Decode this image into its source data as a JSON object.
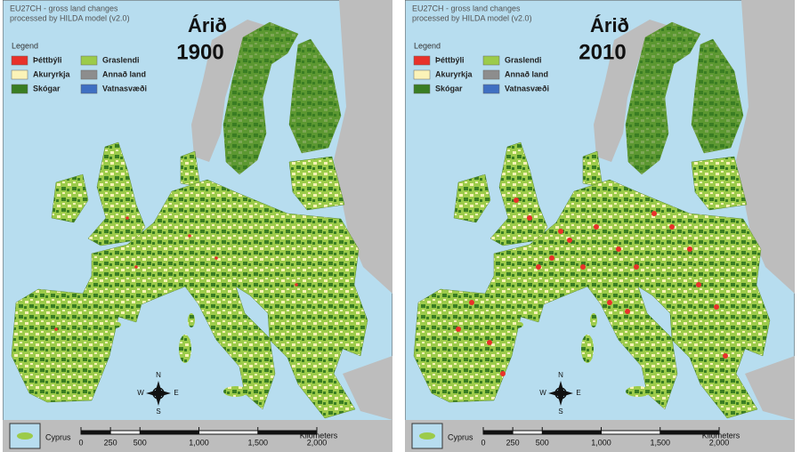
{
  "panels": [
    {
      "header_lines": [
        "EU27CH - gross land changes",
        "processed by HILDA model (v2.0)"
      ],
      "legend": {
        "title": "Legend",
        "items": [
          {
            "label": "Þéttbýli",
            "color": "#e8312a"
          },
          {
            "label": "Akuryrkja",
            "color": "#fbf3b8"
          },
          {
            "label": "Skógar",
            "color": "#3a7d23"
          },
          {
            "label": "Graslendi",
            "color": "#9ccb4a"
          },
          {
            "label": "Annað land",
            "color": "#8d8d8d"
          },
          {
            "label": "Vatnasvæði",
            "color": "#3f6fc2"
          }
        ]
      },
      "title": "Árið",
      "year": "1900",
      "compass": {
        "n": "N",
        "e": "E",
        "s": "S",
        "w": "W"
      },
      "inset": "Cyprus",
      "scale": {
        "ticks": [
          0,
          250,
          500,
          {
            "value": 1000,
            "label": "1,000"
          },
          {
            "value": 1500,
            "label": "1,500"
          },
          {
            "value": 2000,
            "label": "2,000"
          }
        ],
        "unit": "Kilometers"
      }
    },
    {
      "header_lines": [
        "EU27CH - gross land changes",
        "processed by HILDA model (v2.0)"
      ],
      "legend": {
        "title": "Legend",
        "items": [
          {
            "label": "Þéttbýli",
            "color": "#e8312a"
          },
          {
            "label": "Akuryrkja",
            "color": "#fbf3b8"
          },
          {
            "label": "Skógar",
            "color": "#3a7d23"
          },
          {
            "label": "Graslendi",
            "color": "#9ccb4a"
          },
          {
            "label": "Annað land",
            "color": "#8d8d8d"
          },
          {
            "label": "Vatnasvæði",
            "color": "#3f6fc2"
          }
        ]
      },
      "title": "Árið",
      "year": "2010",
      "compass": {
        "n": "N",
        "e": "E",
        "s": "S",
        "w": "W"
      },
      "inset": "Cyprus",
      "scale": {
        "ticks": [
          0,
          250,
          500,
          {
            "value": 1000,
            "label": "1,000"
          },
          {
            "value": 1500,
            "label": "1,500"
          },
          {
            "value": 2000,
            "label": "2,000"
          }
        ],
        "unit": "Kilometers"
      }
    }
  ]
}
